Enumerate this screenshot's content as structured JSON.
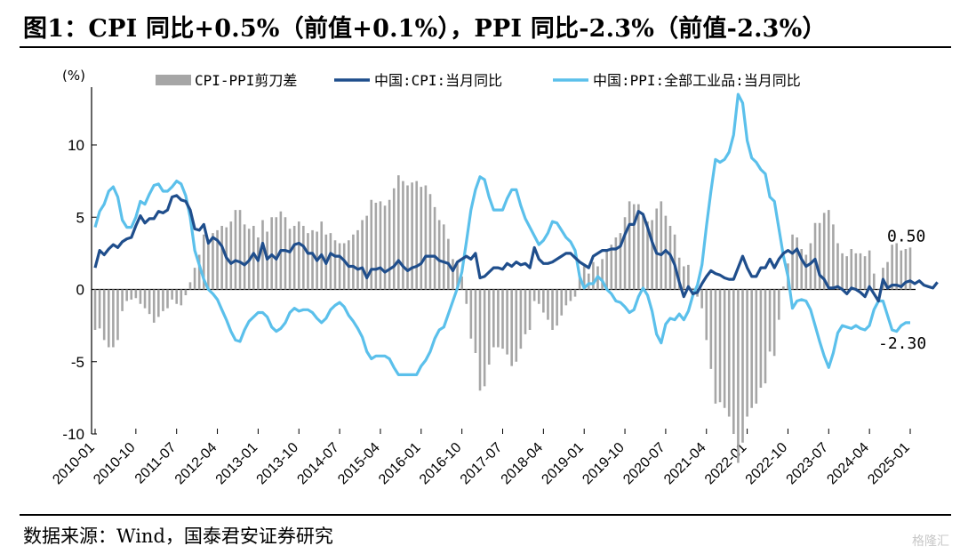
{
  "title": "图1：CPI 同比+0.5%（前值+0.1%），PPI 同比-2.3%（前值-2.3%）",
  "source": "数据来源：Wind，国泰君安证券研究",
  "watermark": "格隆汇",
  "chart_data": {
    "type": "bar+line",
    "unit_label": "(%)",
    "ylim": [
      -10,
      14
    ],
    "yticks": [
      -10,
      -5,
      0,
      5,
      10
    ],
    "x_tick_labels": [
      "2010-01",
      "2010-10",
      "2011-07",
      "2012-04",
      "2013-01",
      "2013-10",
      "2014-07",
      "2015-04",
      "2016-01",
      "2016-10",
      "2017-07",
      "2018-04",
      "2019-01",
      "2019-10",
      "2020-07",
      "2021-04",
      "2022-01",
      "2022-10",
      "2023-07",
      "2024-04",
      "2025-01"
    ],
    "x_start": "2010-01",
    "x_end": "2025-01",
    "frequency": "monthly",
    "legend": [
      "CPI-PPI剪刀差",
      "中国:CPI:当月同比",
      "中国:PPI:全部工业品:当月同比"
    ],
    "legend_position": "top",
    "colors": {
      "spread": "#a6a6a6",
      "cpi": "#1f4e8c",
      "ppi": "#5bc0eb"
    },
    "annotations": [
      {
        "text": "0.50",
        "series": "cpi"
      },
      {
        "text": "-2.30",
        "series": "ppi"
      }
    ],
    "series": [
      {
        "name": "中国:CPI:当月同比",
        "role": "cpi",
        "values": [
          1.5,
          2.7,
          2.4,
          2.8,
          3.1,
          2.9,
          3.3,
          3.5,
          3.6,
          4.4,
          5.1,
          4.6,
          4.9,
          4.9,
          5.4,
          5.3,
          5.5,
          6.4,
          6.5,
          6.2,
          6.1,
          5.5,
          4.2,
          4.1,
          4.5,
          3.2,
          3.6,
          3.4,
          3.0,
          2.2,
          1.8,
          2.0,
          1.9,
          1.7,
          2.0,
          2.5,
          2.0,
          3.2,
          2.1,
          2.4,
          2.1,
          2.7,
          2.7,
          2.6,
          3.1,
          3.2,
          3.0,
          2.5,
          2.5,
          2.0,
          2.4,
          1.8,
          2.5,
          2.3,
          2.3,
          2.0,
          1.6,
          1.6,
          1.4,
          1.5,
          0.8,
          1.4,
          1.4,
          1.5,
          1.2,
          1.4,
          1.6,
          2.0,
          1.6,
          1.3,
          1.5,
          1.6,
          1.8,
          2.3,
          2.3,
          2.3,
          2.0,
          1.9,
          1.8,
          1.3,
          1.9,
          2.1,
          2.3,
          2.1,
          2.5,
          0.8,
          0.9,
          1.2,
          1.5,
          1.5,
          1.4,
          1.8,
          1.6,
          1.9,
          1.7,
          1.8,
          1.5,
          2.9,
          2.1,
          1.8,
          1.8,
          1.9,
          2.1,
          2.3,
          2.5,
          2.5,
          2.2,
          1.9,
          1.7,
          1.5,
          2.3,
          2.5,
          2.7,
          2.7,
          2.8,
          2.8,
          3.0,
          3.8,
          4.5,
          4.5,
          5.4,
          5.2,
          4.3,
          3.3,
          2.5,
          2.4,
          2.7,
          2.4,
          1.7,
          0.5,
          -0.5,
          0.2,
          -0.3,
          -0.2,
          0.4,
          0.9,
          1.3,
          1.1,
          1.0,
          0.8,
          0.7,
          0.7,
          1.5,
          2.3,
          1.5,
          0.9,
          0.9,
          1.5,
          1.5,
          2.1,
          1.5,
          2.1,
          2.5,
          2.7,
          2.5,
          2.8,
          2.1,
          1.6,
          1.8,
          2.1,
          1.0,
          0.7,
          0.1,
          0.1,
          0.2,
          0.0,
          -0.3,
          0.1,
          0.0,
          -0.2,
          -0.5,
          0.2,
          -0.3,
          -0.8,
          0.7,
          0.1,
          0.3,
          0.3,
          0.2,
          0.5,
          0.6,
          0.4,
          0.6,
          0.3,
          0.2,
          0.1,
          0.5
        ]
      },
      {
        "name": "中国:PPI:全部工业品:当月同比",
        "role": "ppi",
        "values": [
          4.3,
          5.4,
          5.9,
          6.8,
          7.1,
          6.4,
          4.8,
          4.3,
          4.3,
          5.0,
          6.1,
          5.9,
          6.6,
          7.2,
          7.3,
          6.8,
          6.8,
          7.1,
          7.5,
          7.3,
          6.5,
          5.0,
          2.7,
          1.7,
          0.7,
          0.0,
          -0.3,
          -0.7,
          -1.4,
          -2.1,
          -2.9,
          -3.5,
          -3.6,
          -2.8,
          -2.2,
          -1.9,
          -1.6,
          -1.6,
          -1.9,
          -2.6,
          -2.9,
          -2.7,
          -2.3,
          -1.6,
          -1.3,
          -1.5,
          -1.4,
          -1.4,
          -1.6,
          -2.0,
          -2.3,
          -2.0,
          -1.4,
          -1.1,
          -0.9,
          -1.2,
          -1.8,
          -2.2,
          -2.7,
          -3.3,
          -4.3,
          -4.8,
          -4.6,
          -4.6,
          -4.6,
          -4.8,
          -5.4,
          -5.9,
          -5.9,
          -5.9,
          -5.9,
          -5.9,
          -5.3,
          -4.9,
          -4.3,
          -3.4,
          -2.8,
          -2.6,
          -1.7,
          -0.8,
          0.1,
          1.2,
          3.3,
          5.5,
          6.9,
          7.8,
          7.6,
          6.4,
          5.5,
          5.5,
          5.5,
          6.3,
          6.9,
          6.9,
          5.8,
          4.9,
          4.3,
          3.7,
          3.1,
          3.4,
          3.9,
          4.7,
          4.6,
          4.1,
          3.6,
          3.3,
          2.7,
          0.9,
          0.1,
          0.4,
          0.4,
          0.9,
          0.6,
          0.0,
          -0.3,
          -0.8,
          -0.9,
          -1.2,
          -1.6,
          -1.4,
          -0.5,
          0.1,
          -0.4,
          -1.5,
          -3.1,
          -3.7,
          -2.4,
          -2.0,
          -2.1,
          -1.7,
          -2.1,
          -1.5,
          -0.4,
          0.3,
          1.7,
          4.4,
          6.8,
          9.0,
          8.8,
          9.0,
          9.5,
          10.7,
          13.5,
          12.9,
          10.3,
          9.1,
          8.8,
          8.3,
          8.0,
          6.4,
          6.1,
          4.2,
          2.3,
          0.9,
          -1.3,
          -0.8,
          -0.7,
          -0.8,
          -1.4,
          -2.5,
          -3.6,
          -4.6,
          -5.4,
          -4.4,
          -3.0,
          -2.5,
          -2.6,
          -2.7,
          -2.5,
          -2.7,
          -2.8,
          -2.5,
          -1.4,
          -0.8,
          -0.8,
          -1.8,
          -2.8,
          -2.9,
          -2.5,
          -2.3,
          -2.3
        ]
      }
    ]
  }
}
